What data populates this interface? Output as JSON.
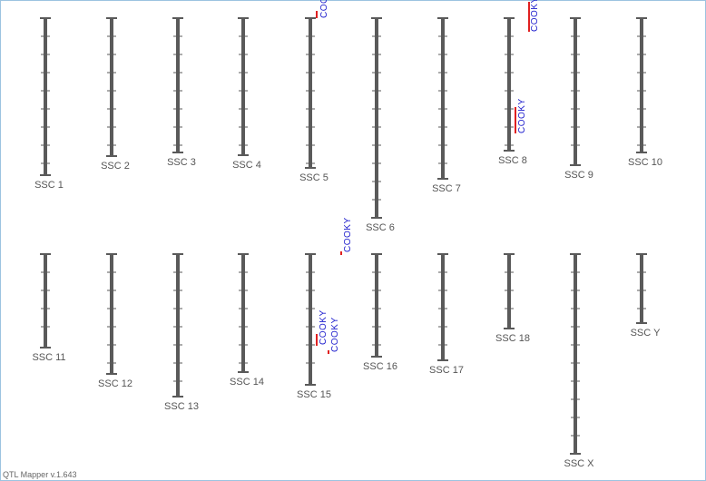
{
  "chromosomes": [
    {
      "label": "SSC 1"
    },
    {
      "label": "SSC 2"
    },
    {
      "label": "SSC 3"
    },
    {
      "label": "SSC 4"
    },
    {
      "label": "SSC 5"
    },
    {
      "label": "SSC 6"
    },
    {
      "label": "SSC 7"
    },
    {
      "label": "SSC 8"
    },
    {
      "label": "SSC 9"
    },
    {
      "label": "SSC 10"
    },
    {
      "label": "SSC 11"
    },
    {
      "label": "SSC 12"
    },
    {
      "label": "SSC 13"
    },
    {
      "label": "SSC 14"
    },
    {
      "label": "SSC 15"
    },
    {
      "label": "SSC 16"
    },
    {
      "label": "SSC 17"
    },
    {
      "label": "SSC 18"
    },
    {
      "label": "SSC X"
    },
    {
      "label": "SSC Y"
    }
  ],
  "qtls": [
    {
      "label": "COOKY"
    },
    {
      "label": "COOKY"
    },
    {
      "label": "COOKY"
    },
    {
      "label": "COOKY"
    },
    {
      "label": "COOKY"
    },
    {
      "label": "COOKY"
    }
  ],
  "footer": "QTL Mapper v.1.643"
}
